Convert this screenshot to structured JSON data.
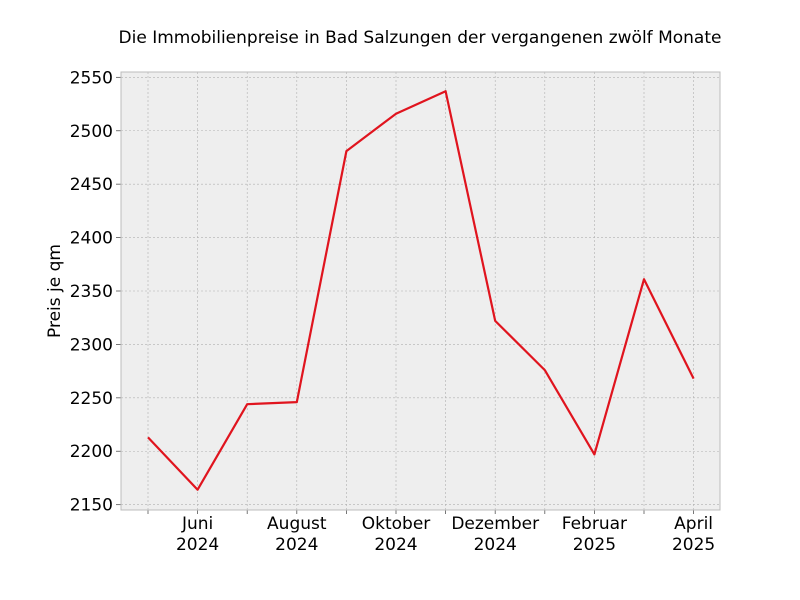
{
  "chart_data": {
    "type": "line",
    "title": "Die Immobilienpreise in Bad Salzungen der vergangenen zwölf Monate",
    "xlabel": "",
    "ylabel": "Preis je qm",
    "x": [
      "2024-05",
      "2024-06",
      "2024-07",
      "2024-08",
      "2024-09",
      "2024-10",
      "2024-11",
      "2024-12",
      "2025-01",
      "2025-02",
      "2025-03",
      "2025-04"
    ],
    "series": [
      {
        "values": [
          2213,
          2164,
          2244,
          2246,
          2481,
          2516,
          2537,
          2322,
          2276,
          2197,
          2361,
          2268
        ]
      }
    ],
    "ylim": [
      2145,
      2555
    ],
    "yticks": [
      2150,
      2200,
      2250,
      2300,
      2350,
      2400,
      2450,
      2500,
      2550
    ],
    "xticks": [
      {
        "month": "Juni",
        "year": "2024",
        "index": 1
      },
      {
        "month": "August",
        "year": "2024",
        "index": 3
      },
      {
        "month": "Oktober",
        "year": "2024",
        "index": 5
      },
      {
        "month": "Dezember",
        "year": "2024",
        "index": 7
      },
      {
        "month": "Februar",
        "year": "2025",
        "index": 9
      },
      {
        "month": "April",
        "year": "2025",
        "index": 11
      }
    ],
    "grid": true,
    "colors": {
      "line": "#e0141e",
      "plot_background": "#eeeeee",
      "grid": "#b0b0b0",
      "axes": "#bcbcbc"
    }
  }
}
